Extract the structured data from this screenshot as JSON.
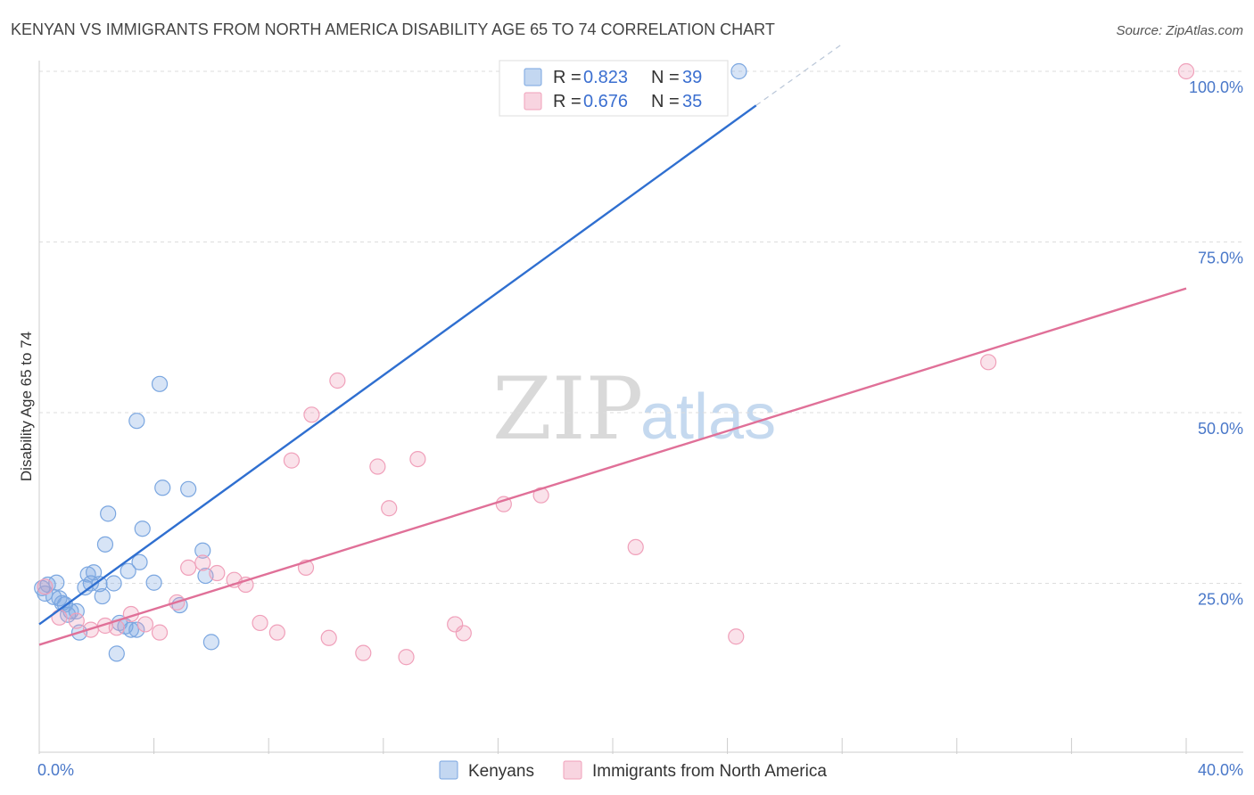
{
  "chart_data": {
    "type": "scatter",
    "title": "KENYAN VS IMMIGRANTS FROM NORTH AMERICA DISABILITY AGE 65 TO 74 CORRELATION CHART",
    "source": "Source: ZipAtlas.com",
    "xlabel": "",
    "ylabel": "Disability Age 65 to 74",
    "xlim": [
      0,
      40
    ],
    "ylim": [
      0,
      100
    ],
    "x_tick_labels": [
      "0.0%",
      "40.0%"
    ],
    "y_ticks": [
      25,
      50,
      75,
      100
    ],
    "y_tick_labels": [
      "25.0%",
      "50.0%",
      "75.0%",
      "100.0%"
    ],
    "watermark": {
      "zip": "ZIP",
      "atlas": "atlas"
    },
    "legend": {
      "r_label": "R = ",
      "n_label": "N = ",
      "entries": [
        {
          "name": "Kenyans",
          "r": "0.823",
          "n": "39",
          "color": "#7aa6e0"
        },
        {
          "name": "Immigrants from North America",
          "r": "0.676",
          "n": "35",
          "color": "#f0a0ba"
        }
      ]
    },
    "series": [
      {
        "name": "Kenyans",
        "color": "#7aa6e0",
        "fill": "rgba(122,166,224,0.30)",
        "line_color": "#2f6fd0",
        "trend": {
          "x0": 0,
          "y0": 19,
          "x1": 25,
          "y1": 95,
          "dash_to_x": 28,
          "dash_to_y": 104
        },
        "points": [
          [
            0.1,
            24.3
          ],
          [
            0.3,
            24.8
          ],
          [
            0.5,
            23.0
          ],
          [
            0.6,
            25.1
          ],
          [
            0.8,
            22.1
          ],
          [
            0.9,
            21.9
          ],
          [
            1.0,
            20.4
          ],
          [
            1.1,
            20.9
          ],
          [
            1.3,
            20.9
          ],
          [
            1.4,
            17.8
          ],
          [
            1.6,
            24.4
          ],
          [
            1.7,
            26.3
          ],
          [
            1.8,
            25.0
          ],
          [
            1.9,
            26.6
          ],
          [
            2.1,
            24.9
          ],
          [
            2.2,
            23.1
          ],
          [
            2.3,
            30.7
          ],
          [
            2.4,
            35.2
          ],
          [
            2.6,
            25.0
          ],
          [
            2.7,
            14.7
          ],
          [
            2.8,
            19.2
          ],
          [
            3.0,
            18.7
          ],
          [
            3.1,
            26.8
          ],
          [
            3.2,
            18.2
          ],
          [
            3.4,
            18.2
          ],
          [
            3.4,
            48.8
          ],
          [
            3.5,
            28.1
          ],
          [
            3.6,
            33.0
          ],
          [
            4.0,
            25.1
          ],
          [
            4.2,
            54.2
          ],
          [
            4.3,
            39.0
          ],
          [
            4.9,
            21.8
          ],
          [
            5.2,
            38.8
          ],
          [
            5.7,
            29.8
          ],
          [
            5.8,
            26.1
          ],
          [
            6.0,
            16.4
          ],
          [
            24.4,
            100.0
          ],
          [
            0.2,
            23.5
          ],
          [
            0.7,
            22.8
          ]
        ]
      },
      {
        "name": "Immigrants from North America",
        "color": "#f0a0ba",
        "fill": "rgba(240,160,186,0.30)",
        "line_color": "#e07098",
        "trend": {
          "x0": 0,
          "y0": 16,
          "x1": 40,
          "y1": 68.2
        },
        "points": [
          [
            0.2,
            24.5
          ],
          [
            0.7,
            20.0
          ],
          [
            1.3,
            19.5
          ],
          [
            1.8,
            18.2
          ],
          [
            2.3,
            18.8
          ],
          [
            2.7,
            18.5
          ],
          [
            3.2,
            20.5
          ],
          [
            3.7,
            19.0
          ],
          [
            4.2,
            17.8
          ],
          [
            4.8,
            22.2
          ],
          [
            5.2,
            27.3
          ],
          [
            5.7,
            28.0
          ],
          [
            6.2,
            26.5
          ],
          [
            6.8,
            25.5
          ],
          [
            7.2,
            24.8
          ],
          [
            7.7,
            19.2
          ],
          [
            8.3,
            17.8
          ],
          [
            8.8,
            43.0
          ],
          [
            9.3,
            27.3
          ],
          [
            9.5,
            49.7
          ],
          [
            10.1,
            17.0
          ],
          [
            10.4,
            54.7
          ],
          [
            11.3,
            14.8
          ],
          [
            11.8,
            42.1
          ],
          [
            12.2,
            36.0
          ],
          [
            12.8,
            14.2
          ],
          [
            13.2,
            43.2
          ],
          [
            14.5,
            19.0
          ],
          [
            14.8,
            17.7
          ],
          [
            16.2,
            36.6
          ],
          [
            17.5,
            37.9
          ],
          [
            20.8,
            30.3
          ],
          [
            24.3,
            17.2
          ],
          [
            33.1,
            57.4
          ],
          [
            40.0,
            100.0
          ]
        ]
      }
    ]
  }
}
